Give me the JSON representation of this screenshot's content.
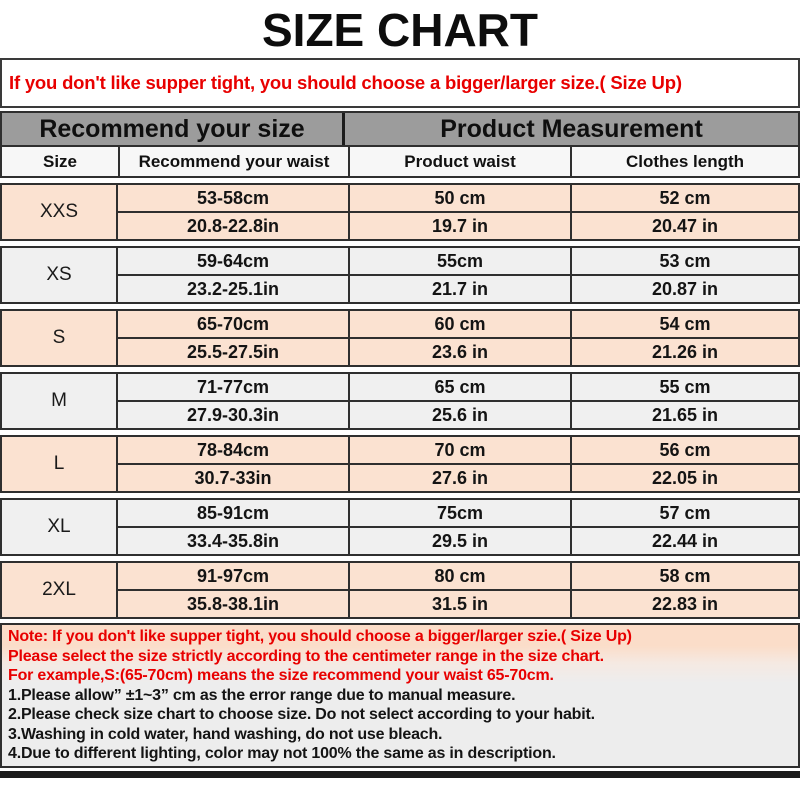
{
  "page": {
    "title": "SIZE CHART"
  },
  "warning": {
    "text": "If you don't like supper tight, you should choose a bigger/larger size.( Size Up)"
  },
  "table": {
    "group_headers": {
      "left": "Recommend your size",
      "right": "Product Measurement"
    },
    "columns": [
      "Size",
      "Recommend your waist",
      "Product waist",
      "Clothes length"
    ],
    "rows": [
      {
        "size": "XXS",
        "cm": [
          "53-58cm",
          "50 cm",
          "52 cm"
        ],
        "inch": [
          "20.8-22.8in",
          "19.7 in",
          "20.47 in"
        ]
      },
      {
        "size": "XS",
        "cm": [
          "59-64cm",
          "55cm",
          "53 cm"
        ],
        "inch": [
          "23.2-25.1in",
          "21.7 in",
          "20.87 in"
        ]
      },
      {
        "size": "S",
        "cm": [
          "65-70cm",
          "60 cm",
          "54 cm"
        ],
        "inch": [
          "25.5-27.5in",
          "23.6 in",
          "21.26 in"
        ]
      },
      {
        "size": "M",
        "cm": [
          "71-77cm",
          "65 cm",
          "55 cm"
        ],
        "inch": [
          "27.9-30.3in",
          "25.6 in",
          "21.65 in"
        ]
      },
      {
        "size": "L",
        "cm": [
          "78-84cm",
          "70 cm",
          "56 cm"
        ],
        "inch": [
          "30.7-33in",
          "27.6 in",
          "22.05 in"
        ]
      },
      {
        "size": "XL",
        "cm": [
          "85-91cm",
          "75cm",
          "57 cm"
        ],
        "inch": [
          "33.4-35.8in",
          "29.5 in",
          "22.44 in"
        ]
      },
      {
        "size": "2XL",
        "cm": [
          "91-97cm",
          "80 cm",
          "58 cm"
        ],
        "inch": [
          "35.8-38.1in",
          "31.5 in",
          "22.83 in"
        ]
      }
    ]
  },
  "notes": {
    "red": [
      "Note: If you don't like supper tight, you should choose a bigger/larger szie.( Size Up)",
      "Please select the size strictly according to the centimeter range in the size chart.",
      "For example,S:(65-70cm) means the size recommend your waist 65-70cm."
    ],
    "black": [
      "1.Please allow”  ±1~3”  cm as the error range due to manual measure.",
      "2.Please check size chart to choose size. Do not select according to your habit.",
      "3.Washing in cold water, hand washing, do not use bleach.",
      "4.Due to different lighting, color may not 100% the same as in description."
    ]
  },
  "colors": {
    "accent_red": "#e80000",
    "header_gray": "#9c9c9c",
    "row_peach": "#fbe2d1",
    "row_light": "#f0f0f0",
    "border_dark": "#2f2f2f"
  }
}
